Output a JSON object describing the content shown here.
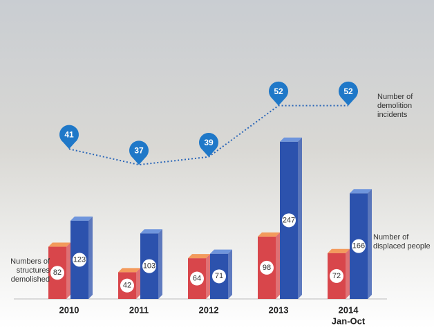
{
  "chart_data": {
    "type": "bar3d",
    "categories": [
      "2010",
      "2011",
      "2012",
      "2013",
      "2014"
    ],
    "period_note": "Jan-Oct",
    "series": [
      {
        "name": "Numbers of structures demolished",
        "color": "#d8464b",
        "top_color": "#f39a5c",
        "values": [
          82,
          42,
          64,
          98,
          72
        ]
      },
      {
        "name": "Number of displaced people",
        "color": "#2c52ad",
        "top_color": "#6f95dc",
        "values": [
          123,
          103,
          71,
          247,
          166
        ]
      }
    ],
    "incidents": {
      "name": "Number of demolition incidents",
      "color": "#1f78c8",
      "values": [
        41,
        37,
        39,
        52,
        52
      ]
    }
  }
}
